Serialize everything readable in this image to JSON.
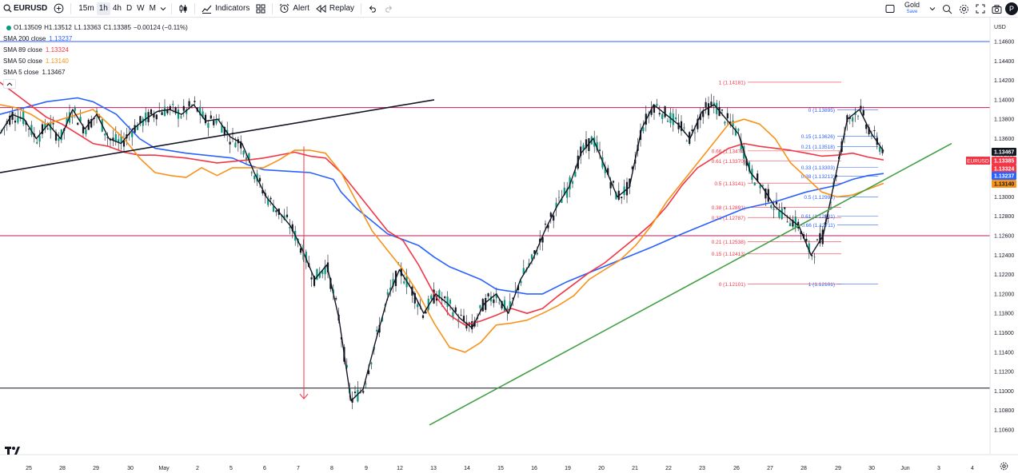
{
  "toolbar": {
    "symbol": "EURUSD",
    "timeframes": [
      "15m",
      "1h",
      "4h",
      "D",
      "W",
      "M"
    ],
    "active_timeframe": "1h",
    "indicators_label": "Indicators",
    "alert_label": "Alert",
    "replay_label": "Replay",
    "layout_name": "Gold",
    "layout_status": "Save",
    "avatar_letter": "P"
  },
  "legend": {
    "ohlc": {
      "o": "O1.13509",
      "h": "H1.13512",
      "l": "L1.13363",
      "c": "C1.13385",
      "chg": "−0.00124 (−0.11%)"
    },
    "indicators": [
      {
        "label": "SMA 200 close",
        "value": "1.13237",
        "color": "#2962ff"
      },
      {
        "label": "SMA 89 close",
        "value": "1.13324",
        "color": "#f23645"
      },
      {
        "label": "SMA 50 close",
        "value": "1.13140",
        "color": "#f7931a"
      },
      {
        "label": "SMA 5 close",
        "value": "1.13467",
        "color": "#131722"
      }
    ],
    "collapse_icon": "chevron-up"
  },
  "chart_data": {
    "type": "candlestick",
    "symbol": "EURUSD",
    "currency": "USD",
    "ylim": [
      1.1045,
      1.1475
    ],
    "y_ticks": [
      "1.14600",
      "1.14400",
      "1.14200",
      "1.14000",
      "1.13800",
      "1.13600",
      "1.13400",
      "1.13200",
      "1.13000",
      "1.12800",
      "1.12600",
      "1.12400",
      "1.12200",
      "1.12000",
      "1.11800",
      "1.11600",
      "1.11400",
      "1.11200",
      "1.11000",
      "1.10800",
      "1.10600"
    ],
    "x_labels": [
      "25",
      "28",
      "29",
      "30",
      "May",
      "2",
      "5",
      "6",
      "7",
      "8",
      "9",
      "12",
      "13",
      "14",
      "15",
      "16",
      "19",
      "20",
      "21",
      "22",
      "23",
      "26",
      "27",
      "28",
      "29",
      "30",
      "Jun",
      "3",
      "4"
    ],
    "price_badges": [
      {
        "value": "1.13467",
        "bg": "#131722",
        "fg": "#ffffff"
      },
      {
        "value": "1.13385",
        "bg": "#f23645",
        "fg": "#ffffff",
        "tag": "EURUSD"
      },
      {
        "value": "1.13324",
        "bg": "#f23645",
        "fg": "#ffffff"
      },
      {
        "value": "1.13237",
        "bg": "#2962ff",
        "fg": "#ffffff"
      },
      {
        "value": "1.13140",
        "bg": "#f7931a",
        "fg": "#131722"
      }
    ],
    "series": [
      {
        "name": "SMA 200 close",
        "color": "#2962ff",
        "points": [
          [
            0,
            1.1385
          ],
          [
            3,
            1.1398
          ],
          [
            5,
            1.1402
          ],
          [
            6,
            1.1398
          ],
          [
            7.5,
            1.1385
          ],
          [
            9,
            1.136
          ],
          [
            10,
            1.135
          ],
          [
            12,
            1.1345
          ],
          [
            15,
            1.134
          ],
          [
            16,
            1.1333
          ],
          [
            17,
            1.1328
          ],
          [
            20,
            1.1325
          ],
          [
            21.5,
            1.1318
          ],
          [
            22,
            1.1305
          ],
          [
            23,
            1.1288
          ],
          [
            24,
            1.1275
          ],
          [
            25,
            1.1262
          ],
          [
            27,
            1.125
          ],
          [
            28,
            1.1238
          ],
          [
            29,
            1.1228
          ],
          [
            31,
            1.1215
          ],
          [
            32,
            1.1205
          ],
          [
            34,
            1.12
          ],
          [
            35,
            1.12
          ],
          [
            36.5,
            1.1212
          ],
          [
            38,
            1.1222
          ],
          [
            40,
            1.1235
          ],
          [
            42,
            1.1248
          ],
          [
            44,
            1.1262
          ],
          [
            46,
            1.1275
          ],
          [
            48,
            1.1288
          ],
          [
            50,
            1.1295
          ],
          [
            52,
            1.1305
          ],
          [
            54,
            1.1312
          ],
          [
            55,
            1.1318
          ],
          [
            56,
            1.1322
          ],
          [
            57,
            1.1324
          ]
        ]
      },
      {
        "name": "SMA 89 close",
        "color": "#f23645",
        "points": [
          [
            0,
            1.1418
          ],
          [
            1.5,
            1.14
          ],
          [
            3,
            1.1382
          ],
          [
            4,
            1.1375
          ],
          [
            5,
            1.1365
          ],
          [
            6,
            1.1355
          ],
          [
            7,
            1.1352
          ],
          [
            8,
            1.1346
          ],
          [
            9,
            1.1343
          ],
          [
            10,
            1.1343
          ],
          [
            12,
            1.134
          ],
          [
            14,
            1.1335
          ],
          [
            16,
            1.1338
          ],
          [
            17,
            1.134
          ],
          [
            19,
            1.1346
          ],
          [
            20,
            1.1342
          ],
          [
            21,
            1.134
          ],
          [
            22,
            1.1325
          ],
          [
            23,
            1.1305
          ],
          [
            24,
            1.1285
          ],
          [
            25,
            1.1265
          ],
          [
            26,
            1.1255
          ],
          [
            27,
            1.123
          ],
          [
            28,
            1.12
          ],
          [
            29,
            1.1178
          ],
          [
            30,
            1.1168
          ],
          [
            31,
            1.1172
          ],
          [
            32,
            1.1178
          ],
          [
            33,
            1.1185
          ],
          [
            34,
            1.118
          ],
          [
            35,
            1.1185
          ],
          [
            36,
            1.1198
          ],
          [
            37,
            1.121
          ],
          [
            38,
            1.1222
          ],
          [
            39,
            1.1232
          ],
          [
            40,
            1.1245
          ],
          [
            41,
            1.1258
          ],
          [
            42,
            1.1272
          ],
          [
            43,
            1.129
          ],
          [
            44,
            1.1312
          ],
          [
            45,
            1.133
          ],
          [
            46,
            1.134
          ],
          [
            47,
            1.135
          ],
          [
            48,
            1.1355
          ],
          [
            49,
            1.1352
          ],
          [
            50,
            1.135
          ],
          [
            51,
            1.1348
          ],
          [
            52,
            1.1345
          ],
          [
            53,
            1.1342
          ],
          [
            54,
            1.1343
          ],
          [
            55,
            1.1345
          ],
          [
            56,
            1.1341
          ],
          [
            57,
            1.1338
          ]
        ]
      },
      {
        "name": "SMA 50 close",
        "color": "#f7931a",
        "points": [
          [
            0,
            1.1395
          ],
          [
            1,
            1.1392
          ],
          [
            2,
            1.1385
          ],
          [
            3,
            1.1375
          ],
          [
            4,
            1.138
          ],
          [
            5,
            1.1385
          ],
          [
            6,
            1.139
          ],
          [
            7,
            1.1375
          ],
          [
            8,
            1.136
          ],
          [
            9,
            1.134
          ],
          [
            10,
            1.1325
          ],
          [
            11,
            1.1322
          ],
          [
            12,
            1.132
          ],
          [
            13,
            1.133
          ],
          [
            14,
            1.1322
          ],
          [
            15,
            1.133
          ],
          [
            16,
            1.133
          ],
          [
            17,
            1.133
          ],
          [
            18,
            1.1338
          ],
          [
            19,
            1.1348
          ],
          [
            20,
            1.1348
          ],
          [
            21,
            1.1345
          ],
          [
            22,
            1.1325
          ],
          [
            23,
            1.1295
          ],
          [
            24,
            1.1265
          ],
          [
            25,
            1.1245
          ],
          [
            26,
            1.1225
          ],
          [
            27,
            1.12
          ],
          [
            28,
            1.117
          ],
          [
            29,
            1.1145
          ],
          [
            30,
            1.114
          ],
          [
            31,
            1.115
          ],
          [
            32,
            1.1168
          ],
          [
            33,
            1.117
          ],
          [
            34,
            1.1173
          ],
          [
            35,
            1.118
          ],
          [
            36,
            1.1188
          ],
          [
            37,
            1.1198
          ],
          [
            38,
            1.1215
          ],
          [
            39,
            1.1225
          ],
          [
            40,
            1.1235
          ],
          [
            41,
            1.125
          ],
          [
            42,
            1.127
          ],
          [
            43,
            1.1295
          ],
          [
            44,
            1.1315
          ],
          [
            45,
            1.1335
          ],
          [
            46,
            1.1355
          ],
          [
            47,
            1.1375
          ],
          [
            48,
            1.138
          ],
          [
            49,
            1.1375
          ],
          [
            50,
            1.136
          ],
          [
            51,
            1.1335
          ],
          [
            52,
            1.132
          ],
          [
            53,
            1.1305
          ],
          [
            54,
            1.13
          ],
          [
            55,
            1.1302
          ],
          [
            56,
            1.1308
          ],
          [
            57,
            1.1314
          ]
        ]
      },
      {
        "name": "SMA 5 close",
        "color": "#131722",
        "points": [
          [
            0,
            1.1365
          ],
          [
            1,
            1.1385
          ],
          [
            2,
            1.138
          ],
          [
            3,
            1.136
          ],
          [
            4,
            1.1375
          ],
          [
            5,
            1.136
          ],
          [
            6,
            1.139
          ],
          [
            7,
            1.137
          ],
          [
            8,
            1.1385
          ],
          [
            9,
            1.136
          ],
          [
            10,
            1.1355
          ],
          [
            11,
            1.137
          ],
          [
            12,
            1.138
          ],
          [
            13,
            1.1388
          ],
          [
            14,
            1.139
          ],
          [
            15,
            1.1385
          ],
          [
            16,
            1.1395
          ],
          [
            17,
            1.1378
          ],
          [
            18,
            1.138
          ],
          [
            19,
            1.1362
          ],
          [
            20,
            1.1355
          ],
          [
            21,
            1.1325
          ],
          [
            22,
            1.13
          ],
          [
            23,
            1.1285
          ],
          [
            24,
            1.127
          ],
          [
            25,
            1.1245
          ],
          [
            26,
            1.1215
          ],
          [
            27,
            1.123
          ],
          [
            28,
            1.1175
          ],
          [
            29,
            1.109
          ],
          [
            30,
            1.1102
          ],
          [
            31,
            1.115
          ],
          [
            32,
            1.1195
          ],
          [
            33,
            1.1225
          ],
          [
            34,
            1.1205
          ],
          [
            35,
            1.118
          ],
          [
            36,
            1.12
          ],
          [
            37,
            1.119
          ],
          [
            38,
            1.1175
          ],
          [
            39,
            1.1165
          ],
          [
            40,
            1.119
          ],
          [
            41,
            1.12
          ],
          [
            42,
            1.118
          ],
          [
            43,
            1.1215
          ],
          [
            44,
            1.1235
          ],
          [
            45,
            1.1265
          ],
          [
            46,
            1.129
          ],
          [
            47,
            1.131
          ],
          [
            48,
            1.1345
          ],
          [
            49,
            1.136
          ],
          [
            50,
            1.133
          ],
          [
            51,
            1.13
          ],
          [
            52,
            1.131
          ],
          [
            53,
            1.137
          ],
          [
            54,
            1.1395
          ],
          [
            55,
            1.1385
          ],
          [
            56,
            1.1375
          ],
          [
            57,
            1.136
          ],
          [
            58,
            1.1388
          ],
          [
            59,
            1.1395
          ],
          [
            60,
            1.138
          ],
          [
            61,
            1.1365
          ],
          [
            62,
            1.1325
          ],
          [
            63,
            1.131
          ],
          [
            64,
            1.129
          ],
          [
            65,
            1.128
          ],
          [
            66,
            1.127
          ],
          [
            67,
            1.124
          ],
          [
            68,
            1.126
          ],
          [
            69,
            1.132
          ],
          [
            70,
            1.138
          ],
          [
            71,
            1.139
          ],
          [
            72,
            1.1365
          ],
          [
            73,
            1.1347
          ]
        ]
      }
    ],
    "horizontal_lines": [
      {
        "value": 1.146,
        "color": "#2962ff"
      },
      {
        "value": 1.1392,
        "color": "#c2185b"
      },
      {
        "value": 1.126,
        "color": "#c2185b"
      },
      {
        "value": 1.1103,
        "color": "#131722"
      }
    ],
    "trend_lines": [
      {
        "color": "#131722",
        "from": [
          0,
          1.1325
        ],
        "to": [
          543,
          1.14
        ]
      },
      {
        "color": "#43a047",
        "from": [
          537,
          1.1065
        ],
        "to": [
          1190,
          1.1355
        ]
      }
    ],
    "arrow": {
      "color": "#f23645",
      "from": [
        380,
        1.1352
      ],
      "to": [
        380,
        1.1092
      ]
    },
    "fib_left": {
      "color": "#f23645",
      "levels": [
        {
          "label": "1 (1.14181)",
          "value": 1.14181
        },
        {
          "label": "0.66 (1.13474)",
          "value": 1.13474
        },
        {
          "label": "0.61 (1.13370)",
          "value": 1.1337
        },
        {
          "label": "0.5 (1.13141)",
          "value": 1.13141
        },
        {
          "label": "0.38 (1.12891)",
          "value": 1.12891
        },
        {
          "label": "0.33 (1.12787)",
          "value": 1.12787
        },
        {
          "label": "0.21 (1.12538)",
          "value": 1.12538
        },
        {
          "label": "0.15 (1.12413)",
          "value": 1.12413
        },
        {
          "label": "0 (1.12101)",
          "value": 1.12101
        }
      ]
    },
    "fib_right": {
      "color": "#2962ff",
      "levels": [
        {
          "label": "0 (1.13895)",
          "value": 1.13895
        },
        {
          "label": "0.15 (1.13626)",
          "value": 1.13626
        },
        {
          "label": "0.21 (1.13518)",
          "value": 1.13518
        },
        {
          "label": "0.33 (1.13303)",
          "value": 1.13303
        },
        {
          "label": "0.38 (1.13213)",
          "value": 1.13213
        },
        {
          "label": "0.5 (1.12998)",
          "value": 1.12998
        },
        {
          "label": "0.61 (1.12801)",
          "value": 1.12801
        },
        {
          "label": "0.66 (1.12711)",
          "value": 1.12711
        },
        {
          "label": "1 (1.12101)",
          "value": 1.12101
        }
      ]
    }
  }
}
